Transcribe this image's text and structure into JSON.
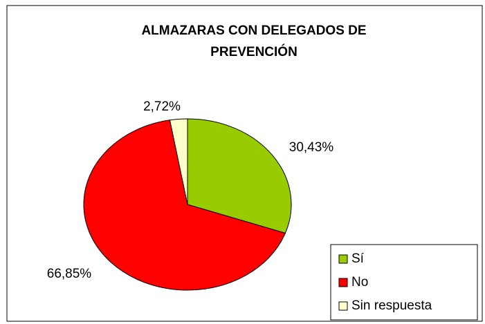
{
  "chart_data": {
    "type": "pie",
    "title": [
      "ALMAZARAS CON DELEGADOS DE",
      "PREVENCIÓN"
    ],
    "categories": [
      "Sí",
      "No",
      "Sin respuesta"
    ],
    "values": [
      30.43,
      66.85,
      2.72
    ],
    "value_labels": [
      "30,43%",
      "66,85%",
      "2,72%"
    ],
    "colors": [
      "#99cc00",
      "#ff0000",
      "#ffffcc"
    ],
    "legend": "bottom-right"
  }
}
